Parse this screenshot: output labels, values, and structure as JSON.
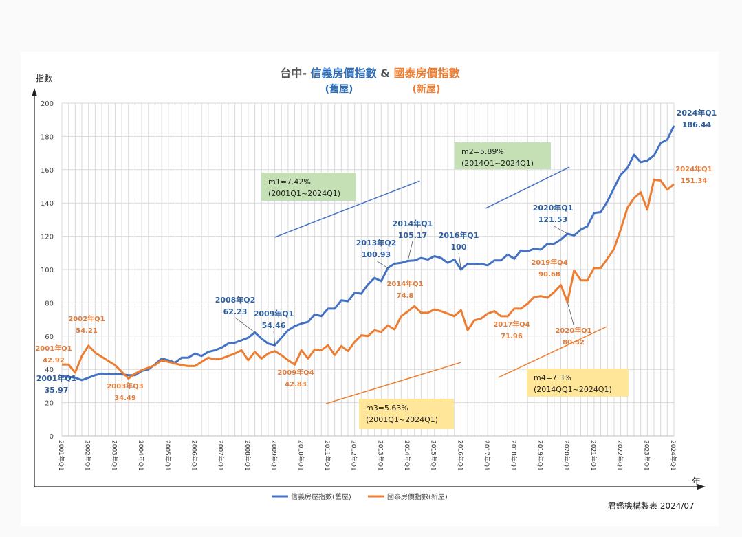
{
  "chart_data": {
    "type": "line",
    "title": {
      "prefix": "台中- ",
      "series1_title": "信義房價指數",
      "joiner": " & ",
      "series2_title": "國泰房價指數",
      "series1_sub": "(舊屋)",
      "series2_sub": "(新屋)"
    },
    "ylabel": "指數",
    "xlabel": "年",
    "ylim": [
      0,
      200
    ],
    "yticks": [
      0,
      20,
      40,
      60,
      80,
      100,
      120,
      140,
      160,
      180,
      200
    ],
    "grid": true,
    "legend_placement": "bottom",
    "xtick_labels": [
      "2001年Q1",
      "2002年Q1",
      "2003年Q1",
      "2004年Q1",
      "2005年Q1",
      "2006年Q1",
      "2007年Q1",
      "2008年Q1",
      "2009年Q1",
      "2010年Q1",
      "2011年Q1",
      "2012年Q1",
      "2013年Q1",
      "2014年Q1",
      "2015年Q1",
      "2016年Q1",
      "2017年Q1",
      "2018年Q1",
      "2019年Q1",
      "2020年Q1",
      "2021年Q1",
      "2022年Q1",
      "2023年Q1",
      "2024年Q1"
    ],
    "x_range": [
      "2001Q1",
      "2024Q1"
    ],
    "x_frequency": "quarterly",
    "series": [
      {
        "name": "信義房屋指數(舊屋)",
        "color": "#4472C4",
        "values": [
          35.97,
          35.5,
          35,
          33.5,
          35,
          36.5,
          37.5,
          37,
          37,
          37,
          36.5,
          36.5,
          39,
          40,
          43,
          46.5,
          45.5,
          44,
          47,
          47,
          49.5,
          48,
          50.5,
          51.5,
          53,
          55.5,
          56,
          57.5,
          59,
          62.23,
          58.5,
          55.5,
          54.46,
          59,
          63.5,
          66,
          67.5,
          68.5,
          73,
          72,
          76.5,
          76.5,
          81.5,
          81,
          86,
          85.5,
          91,
          95,
          93,
          100.93,
          103.5,
          104,
          105.17,
          105.5,
          107,
          106,
          108,
          107,
          104,
          106,
          100,
          103.5,
          103.5,
          103.5,
          102.5,
          105.5,
          105.5,
          109,
          106.5,
          111.5,
          111,
          112.5,
          112,
          115.5,
          115.5,
          118,
          121.53,
          120.5,
          124,
          126,
          134,
          134.5,
          141,
          149,
          157,
          161,
          169,
          164.5,
          165.5,
          168.5,
          176,
          178,
          186.44
        ]
      },
      {
        "name": "國泰房價指數(新屋)",
        "color": "#ED7D31",
        "values": [
          42.92,
          42.9,
          38,
          48,
          54.21,
          50,
          47.5,
          45,
          42.5,
          38.5,
          34.49,
          37.5,
          39.5,
          41,
          42.5,
          45.5,
          44.5,
          43.5,
          42.5,
          42,
          42,
          44.5,
          47,
          46,
          46.5,
          48,
          49.5,
          51.5,
          45.5,
          50.5,
          46.5,
          49.5,
          51,
          48.5,
          45.5,
          42.83,
          51.5,
          46.5,
          52,
          51.5,
          54.5,
          48.5,
          54,
          51,
          56.5,
          60.5,
          60,
          63.5,
          62.5,
          66.5,
          64,
          72,
          74.8,
          78,
          74,
          74,
          76,
          75,
          73.5,
          72,
          75.5,
          63.5,
          69.5,
          70.5,
          73.5,
          75,
          72,
          71.96,
          76.5,
          76.5,
          79.5,
          83.5,
          84,
          83,
          86.5,
          90.68,
          80.32,
          99.5,
          93.5,
          93.5,
          101,
          101,
          106.5,
          112.5,
          124,
          137,
          143,
          146.5,
          136,
          154,
          153.5,
          148,
          151.34
        ]
      }
    ],
    "annotations": [
      {
        "series": 0,
        "period": "2001年Q1",
        "value": "35.97"
      },
      {
        "series": 0,
        "period": "2008年Q2",
        "value": "62.23"
      },
      {
        "series": 0,
        "period": "2009年Q1",
        "value": "54.46"
      },
      {
        "series": 0,
        "period": "2013年Q2",
        "value": "100.93"
      },
      {
        "series": 0,
        "period": "2014年Q1",
        "value": "105.17"
      },
      {
        "series": 0,
        "period": "2016年Q1",
        "value": "100"
      },
      {
        "series": 0,
        "period": "2020年Q1",
        "value": "121.53"
      },
      {
        "series": 0,
        "period": "2024年Q1",
        "value": "186.44"
      },
      {
        "series": 1,
        "period": "2001年Q1",
        "value": "42.92"
      },
      {
        "series": 1,
        "period": "2002年Q1",
        "value": "54.21"
      },
      {
        "series": 1,
        "period": "2003年Q3",
        "value": "34.49"
      },
      {
        "series": 1,
        "period": "2009年Q4",
        "value": "42.83"
      },
      {
        "series": 1,
        "period": "2014年Q1",
        "value": "74.8"
      },
      {
        "series": 1,
        "period": "2017年Q4",
        "value": "71.96"
      },
      {
        "series": 1,
        "period": "2019年Q4",
        "value": "90.68"
      },
      {
        "series": 1,
        "period": "2020年Q1",
        "value": "80.32"
      },
      {
        "series": 1,
        "period": "2024年Q1",
        "value": "151.34"
      }
    ],
    "trend_notes": [
      {
        "rate": "m1=7.42%",
        "range": "(2001Q1~2024Q1)",
        "box_color": "#C5E0B4",
        "line_color": "#4472C4",
        "line": [
          [
            32,
            119.4
          ],
          [
            53.8,
            153.3
          ]
        ]
      },
      {
        "rate": "m2=5.89%",
        "range": "(2014Q1~2024Q1)",
        "box_color": "#C5E0B4",
        "line_color": "#4472C4",
        "line": [
          [
            63.7,
            136.8
          ],
          [
            76.3,
            161.6
          ]
        ]
      },
      {
        "rate": "m3=5.63%",
        "range": "(2001Q1~2024Q1)",
        "box_color": "#FFE699",
        "line_color": "#ED7D31",
        "line": [
          [
            39.7,
            19.4
          ],
          [
            60,
            44.2
          ]
        ]
      },
      {
        "rate": "m4=7.3%",
        "range": "(2014QQ1~2024Q1)",
        "box_color": "#FFE699",
        "line_color": "#ED7D31",
        "line": [
          [
            65.6,
            35.1
          ],
          [
            81.9,
            65.7
          ]
        ]
      }
    ]
  },
  "footer": {
    "credit": "君鑑機構製表 2024/07"
  }
}
